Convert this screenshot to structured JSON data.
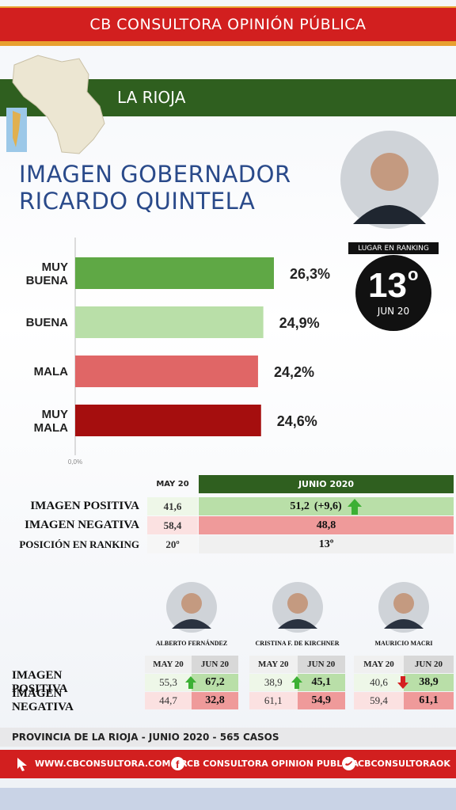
{
  "header": {
    "title": "CB CONSULTORA OPINIÓN PÚBLICA",
    "region": "LA RIOJA"
  },
  "title": [
    "IMAGEN GOBERNADOR",
    "RICARDO QUINTELA"
  ],
  "chart_data": {
    "type": "hbar",
    "categories": [
      "MUY BUENA",
      "BUENA",
      "MALA",
      "MUY MALA"
    ],
    "values": [
      26.3,
      24.9,
      24.2,
      24.6
    ],
    "value_labels": [
      "26,3%",
      "24,9%",
      "24,2%",
      "24,6%"
    ],
    "colors": [
      "#5fa845",
      "#b9dfa8",
      "#e06666",
      "#a50e0e"
    ],
    "xlim": [
      0,
      30
    ],
    "xticks": [
      {
        "value": 0,
        "label": "0,0%"
      }
    ]
  },
  "ranking": {
    "label": "LUGAR EN RANKING",
    "value": "13",
    "ordinal": "o",
    "date": "JUN 20"
  },
  "table": {
    "headers": [
      "MAY 20",
      "JUNIO 2020"
    ],
    "rows": [
      [
        "IMAGEN POSITIVA",
        "41,6",
        "51,2",
        "(+9,6)"
      ],
      [
        "IMAGEN NEGATIVA",
        "58,4",
        "48,8"
      ],
      [
        "POSICIÓN EN RANKING",
        "20º",
        "13º"
      ]
    ]
  },
  "comparison": {
    "headers": [
      "MAY 20",
      "JUN 20"
    ],
    "rows": [
      "IMAGEN POSITIVA",
      "IMAGEN NEGATIVA"
    ],
    "people": [
      {
        "name": "ALBERTO FERNÁNDEZ",
        "positive": [
          "55,3",
          "67,2"
        ],
        "negative": [
          "44,7",
          "32,8"
        ]
      },
      {
        "name": "CRISTINA F. DE KIRCHNER",
        "positive": [
          "38,9",
          "45,1"
        ],
        "negative": [
          "61,1",
          "54,9"
        ]
      },
      {
        "name": "MAURICIO MACRI",
        "positive": [
          "40,6",
          "38,9"
        ],
        "negative": [
          "59,4",
          "61,1"
        ]
      }
    ]
  },
  "footer": {
    "note": "PROVINCIA DE LA RIOJA - JUNIO 2020 -  565 CASOS",
    "links": [
      "WWW.CBCONSULTORA.COM.AR",
      "CB CONSULTORA OPINION PUBLICA",
      "CBCONSULTORAOK"
    ]
  }
}
